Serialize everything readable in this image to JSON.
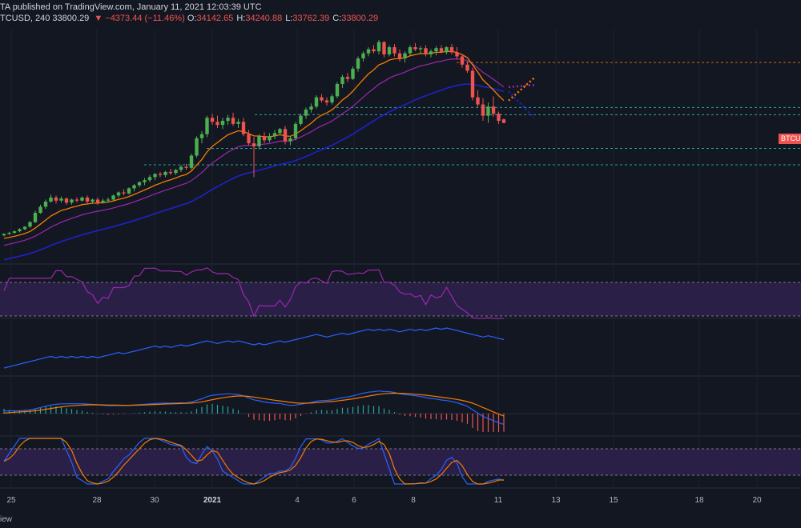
{
  "header": {
    "line1": "TA published on TradingView.com, January 11, 2021 12:03:39 UTC",
    "symbol": "TCUSD, 240",
    "last": "33800.29",
    "change_arrow": "▼",
    "change": "−4373.44 (−11.46%)",
    "open_label": "O:",
    "open": "34142.65",
    "high_label": "H:",
    "high": "34240.88",
    "low_label": "L:",
    "low": "33762.39",
    "close_label": "C:",
    "close": "33800.29"
  },
  "price_tag": "BTCUSD",
  "footer_text": "iew",
  "colors": {
    "background": "#131722",
    "up": "#26a69a",
    "up_candle": "#4caf50",
    "down": "#ef5350",
    "ema_fast": "#f57c00",
    "ema_mid": "#9c27b0",
    "ema_slow": "#1e22c9",
    "level": "#26a69a",
    "rsi_band": "#2a1f47",
    "indicator_line": "#2962ff"
  },
  "chart_data": {
    "type": "candlestick",
    "x_ticks": [
      "25",
      "28",
      "30",
      "2021",
      "4",
      "6",
      "8",
      "11",
      "13",
      "15",
      "18",
      "20"
    ],
    "candles_ohlc": [
      [
        22800,
        23000,
        22700,
        22950
      ],
      [
        22950,
        23150,
        22850,
        23050
      ],
      [
        23050,
        23300,
        22950,
        23200
      ],
      [
        23200,
        23500,
        23100,
        23400
      ],
      [
        23400,
        23700,
        23300,
        23650
      ],
      [
        23650,
        24200,
        23550,
        24100
      ],
      [
        24100,
        25200,
        24000,
        25000
      ],
      [
        25000,
        25800,
        24900,
        25600
      ],
      [
        25600,
        26300,
        25400,
        26100
      ],
      [
        26100,
        26800,
        26000,
        26500
      ],
      [
        26500,
        26700,
        25900,
        26200
      ],
      [
        26200,
        26600,
        26000,
        26400
      ],
      [
        26400,
        26500,
        25800,
        26000
      ],
      [
        26000,
        26400,
        25800,
        26300
      ],
      [
        26300,
        26500,
        26000,
        26200
      ],
      [
        26200,
        26600,
        26100,
        26500
      ],
      [
        26500,
        26700,
        25900,
        26100
      ],
      [
        26100,
        26400,
        25900,
        26300
      ],
      [
        26300,
        26500,
        25800,
        26000
      ],
      [
        26000,
        26400,
        25900,
        26200
      ],
      [
        26200,
        26500,
        26000,
        26300
      ],
      [
        26300,
        26800,
        26100,
        26700
      ],
      [
        26700,
        27100,
        26500,
        27000
      ],
      [
        27000,
        27300,
        26700,
        26900
      ],
      [
        26900,
        27500,
        26800,
        27400
      ],
      [
        27400,
        27800,
        27100,
        27700
      ],
      [
        27700,
        28100,
        27500,
        28000
      ],
      [
        28000,
        28400,
        27700,
        28200
      ],
      [
        28200,
        28700,
        28000,
        28500
      ],
      [
        28500,
        28900,
        28200,
        28800
      ],
      [
        28800,
        29000,
        28500,
        28700
      ],
      [
        28700,
        29100,
        28500,
        29000
      ],
      [
        29000,
        29300,
        28700,
        28900
      ],
      [
        28900,
        29300,
        28700,
        29200
      ],
      [
        29200,
        29700,
        29000,
        29500
      ],
      [
        29500,
        29800,
        29200,
        29400
      ],
      [
        29400,
        30800,
        29200,
        30600
      ],
      [
        30600,
        32500,
        30400,
        32300
      ],
      [
        32300,
        33000,
        31800,
        32700
      ],
      [
        32700,
        34500,
        32400,
        34300
      ],
      [
        34300,
        34700,
        33600,
        33900
      ],
      [
        33900,
        34500,
        33300,
        33600
      ],
      [
        33600,
        34300,
        33200,
        34000
      ],
      [
        34000,
        34600,
        33600,
        34300
      ],
      [
        34300,
        34800,
        33500,
        33700
      ],
      [
        33700,
        34200,
        33300,
        33900
      ],
      [
        33900,
        34300,
        32500,
        32700
      ],
      [
        32700,
        33100,
        31600,
        31800
      ],
      [
        31800,
        32400,
        28500,
        31500
      ],
      [
        31500,
        32700,
        31200,
        32500
      ],
      [
        32500,
        32900,
        31800,
        32100
      ],
      [
        32100,
        32800,
        31900,
        32500
      ],
      [
        32500,
        33100,
        32200,
        32800
      ],
      [
        32800,
        33300,
        32600,
        33200
      ],
      [
        33200,
        33500,
        31700,
        32000
      ],
      [
        32000,
        32500,
        31600,
        32300
      ],
      [
        32300,
        33900,
        32100,
        33700
      ],
      [
        33700,
        34700,
        33500,
        34500
      ],
      [
        34500,
        35300,
        34200,
        35100
      ],
      [
        35100,
        35700,
        34800,
        35400
      ],
      [
        35400,
        36500,
        35200,
        36300
      ],
      [
        36300,
        36600,
        35800,
        36000
      ],
      [
        36000,
        36300,
        35500,
        35800
      ],
      [
        35800,
        36600,
        35600,
        36400
      ],
      [
        36400,
        37800,
        36200,
        37600
      ],
      [
        37600,
        38500,
        37200,
        38300
      ],
      [
        38300,
        38700,
        37800,
        38100
      ],
      [
        38100,
        39300,
        38000,
        39100
      ],
      [
        39100,
        40300,
        38800,
        40100
      ],
      [
        40100,
        40800,
        39800,
        40600
      ],
      [
        40600,
        41200,
        40300,
        41000
      ],
      [
        41000,
        41400,
        40600,
        40800
      ],
      [
        40800,
        41900,
        40500,
        41700
      ],
      [
        41700,
        41800,
        40200,
        40500
      ],
      [
        40500,
        41400,
        40300,
        41200
      ],
      [
        41200,
        41500,
        40300,
        40600
      ],
      [
        40600,
        41000,
        39800,
        40100
      ],
      [
        40100,
        40800,
        39700,
        40600
      ],
      [
        40600,
        41400,
        40400,
        41200
      ],
      [
        41200,
        41600,
        40800,
        41000
      ],
      [
        41000,
        41300,
        40600,
        41100
      ],
      [
        41100,
        41400,
        40300,
        40500
      ],
      [
        40500,
        41000,
        40200,
        40800
      ],
      [
        40800,
        41300,
        40400,
        41100
      ],
      [
        41100,
        41400,
        40600,
        40700
      ],
      [
        40700,
        41300,
        40500,
        41200
      ],
      [
        41200,
        41500,
        40500,
        40700
      ],
      [
        40700,
        41200,
        40000,
        40300
      ],
      [
        40300,
        40500,
        39200,
        39500
      ],
      [
        39500,
        39800,
        38700,
        38900
      ],
      [
        38900,
        39200,
        36000,
        36300
      ],
      [
        36300,
        37000,
        35300,
        35600
      ],
      [
        35600,
        36200,
        34000,
        34500
      ],
      [
        34500,
        35800,
        33800,
        35400
      ],
      [
        35400,
        36400,
        34400,
        34700
      ],
      [
        34700,
        34900,
        33700,
        34000
      ],
      [
        34142.65,
        34240.88,
        33762.39,
        33800.29
      ]
    ],
    "ema_fast_last": 38200,
    "ema_mid_last": 37500,
    "ema_slow_last": 34300,
    "horizontal_levels": [
      39700,
      35300,
      34600,
      31300,
      29700
    ],
    "resistance_level": 39700,
    "price_range": [
      20000,
      43000
    ],
    "sub_panels": [
      "RSI",
      "OBV",
      "MACD",
      "Stochastic RSI"
    ]
  }
}
